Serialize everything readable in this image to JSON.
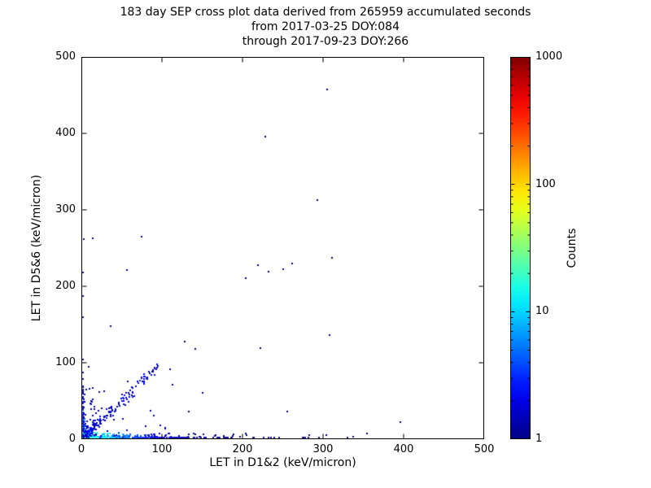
{
  "chart_data": {
    "type": "scatter",
    "title": "183 day SEP cross plot data derived from 265959 accumulated seconds",
    "subtitle_from": "from 2017-03-25 DOY:084",
    "subtitle_through": "through 2017-09-23 DOY:266",
    "xlabel": "LET in D1&2 (keV/micron)",
    "ylabel": "LET in D5&6 (keV/micron)",
    "xlim": [
      0,
      500
    ],
    "ylim": [
      0,
      500
    ],
    "xticks": [
      0,
      100,
      200,
      300,
      400,
      500
    ],
    "yticks": [
      0,
      100,
      200,
      300,
      400,
      500
    ],
    "grid": false,
    "background": "#ffffff",
    "axis_color": "#000000",
    "colorbar": {
      "label": "Counts",
      "scale": "log",
      "range": [
        1,
        1000
      ],
      "ticks": [
        1,
        10,
        100,
        1000
      ],
      "colormap": "jet"
    },
    "seed": 42,
    "point_color_rule": "jet(log10(count)/log10(1000))",
    "clusters": [
      {
        "name": "origin-core",
        "type": "exp-corner",
        "scale_x": 3.5,
        "scale_y": 3.5,
        "max_x": 25,
        "max_y": 30,
        "n": 600,
        "count_max": 90,
        "count_scale": 6
      },
      {
        "name": "bottom-band",
        "type": "band",
        "x_scale": 70,
        "x_max": 360,
        "y_scale": 2.2,
        "y_max": 9,
        "n": 420,
        "count_max": 25,
        "count_scale": 30
      },
      {
        "name": "left-column",
        "type": "band-vert",
        "y_scale": 35,
        "y_max": 115,
        "x_scale": 1.5,
        "x_max": 6,
        "n": 90,
        "count_max": 8,
        "count_scale": 25
      },
      {
        "name": "diagonal",
        "type": "diagonal",
        "t_min": 8,
        "t_max": 95,
        "spread": 5,
        "n": 150,
        "count_max": 3
      },
      {
        "name": "near-halo",
        "type": "exp-corner",
        "scale_x": 28,
        "scale_y": 22,
        "max_x": 170,
        "max_y": 110,
        "n": 80,
        "count_max": 2,
        "count_scale": 60
      }
    ],
    "outlier_points": [
      [
        305,
        457
      ],
      [
        228,
        396
      ],
      [
        293,
        313
      ],
      [
        311,
        237
      ],
      [
        250,
        222
      ],
      [
        232,
        219
      ],
      [
        219,
        228
      ],
      [
        204,
        211
      ],
      [
        262,
        230
      ],
      [
        222,
        119
      ],
      [
        141,
        118
      ],
      [
        308,
        136
      ],
      [
        396,
        22
      ],
      [
        355,
        7
      ],
      [
        337,
        3
      ],
      [
        283,
        5
      ],
      [
        256,
        36
      ],
      [
        150,
        61
      ],
      [
        128,
        128
      ],
      [
        110,
        92
      ],
      [
        75,
        265
      ],
      [
        14,
        263
      ],
      [
        3,
        262
      ],
      [
        2,
        218
      ],
      [
        1,
        187
      ],
      [
        2,
        160
      ],
      [
        36,
        148
      ],
      [
        57,
        221
      ]
    ]
  }
}
